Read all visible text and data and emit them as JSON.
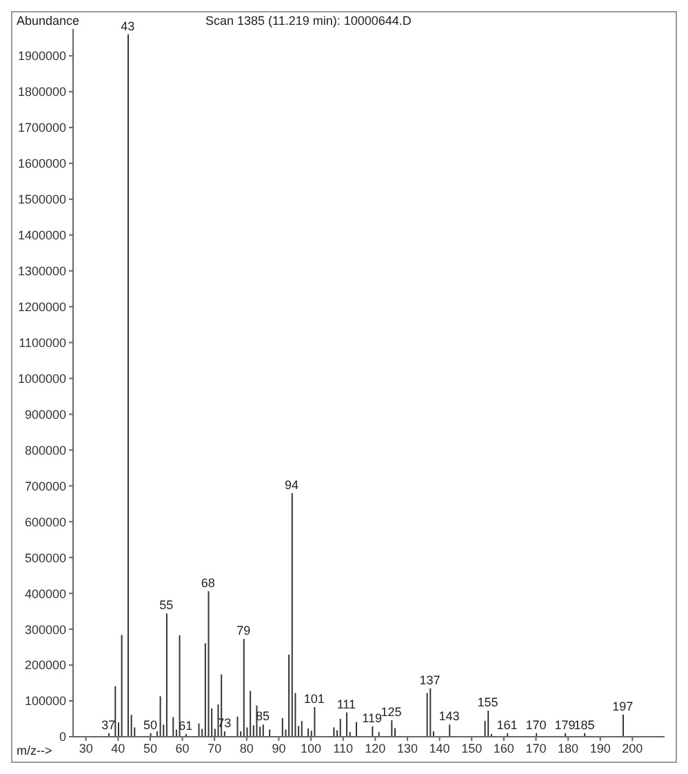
{
  "chart_data": {
    "type": "bar",
    "title": "Scan 1385 (11.219 min): 10000644.D",
    "xlabel": "m/z-->",
    "ylabel": "Abundance",
    "x": [
      37,
      39,
      40,
      41,
      43,
      44,
      45,
      50,
      52,
      53,
      54,
      55,
      57,
      58,
      59,
      61,
      65,
      66,
      67,
      68,
      69,
      70,
      71,
      72,
      73,
      77,
      78,
      79,
      80,
      81,
      82,
      83,
      84,
      85,
      87,
      91,
      92,
      93,
      94,
      95,
      96,
      97,
      99,
      100,
      101,
      107,
      108,
      109,
      111,
      112,
      114,
      119,
      121,
      125,
      126,
      136,
      137,
      138,
      143,
      154,
      155,
      156,
      161,
      170,
      179,
      185,
      197
    ],
    "values": [
      10000,
      141000,
      40000,
      284000,
      1960000,
      61000,
      26000,
      10000,
      15000,
      113000,
      34000,
      344000,
      55000,
      20000,
      283000,
      8000,
      37000,
      22000,
      261000,
      406000,
      79000,
      22000,
      90000,
      174000,
      15000,
      56000,
      15000,
      273000,
      26000,
      128000,
      32000,
      87000,
      28000,
      34000,
      20000,
      52000,
      20000,
      229000,
      680000,
      122000,
      30000,
      44000,
      23000,
      17000,
      83000,
      26000,
      18000,
      50000,
      68000,
      13000,
      41000,
      29000,
      13000,
      46000,
      24000,
      122000,
      135000,
      15000,
      34000,
      44000,
      73000,
      8000,
      10000,
      10000,
      10000,
      10000,
      62000
    ],
    "color": "#333333",
    "xlim": [
      26,
      210
    ],
    "xticks": [
      30,
      40,
      50,
      60,
      70,
      80,
      90,
      100,
      110,
      120,
      130,
      140,
      150,
      160,
      170,
      180,
      190,
      200
    ],
    "ylim": [
      0,
      1975000
    ],
    "yticks": [
      0,
      100000,
      200000,
      300000,
      400000,
      500000,
      600000,
      700000,
      800000,
      900000,
      1000000,
      1100000,
      1200000,
      1300000,
      1400000,
      1500000,
      1600000,
      1700000,
      1800000,
      1900000
    ],
    "grid": false,
    "annotations": [
      {
        "text": "37",
        "x": 37,
        "y": 10000
      },
      {
        "text": "43",
        "x": 43,
        "y": 1960000
      },
      {
        "text": "50",
        "x": 50,
        "y": 10000
      },
      {
        "text": "55",
        "x": 55,
        "y": 344000
      },
      {
        "text": "61",
        "x": 61,
        "y": 8000
      },
      {
        "text": "68",
        "x": 68,
        "y": 406000
      },
      {
        "text": "73",
        "x": 73,
        "y": 15000
      },
      {
        "text": "79",
        "x": 79,
        "y": 273000
      },
      {
        "text": "85",
        "x": 85,
        "y": 34000
      },
      {
        "text": "94",
        "x": 94,
        "y": 680000
      },
      {
        "text": "101",
        "x": 101,
        "y": 83000
      },
      {
        "text": "111",
        "x": 111,
        "y": 68000
      },
      {
        "text": "119",
        "x": 119,
        "y": 29000
      },
      {
        "text": "125",
        "x": 125,
        "y": 46000
      },
      {
        "text": "137",
        "x": 137,
        "y": 135000
      },
      {
        "text": "143",
        "x": 143,
        "y": 34000
      },
      {
        "text": "155",
        "x": 155,
        "y": 73000
      },
      {
        "text": "161",
        "x": 161,
        "y": 10000
      },
      {
        "text": "170",
        "x": 170,
        "y": 10000
      },
      {
        "text": "179",
        "x": 179,
        "y": 10000
      },
      {
        "text": "185",
        "x": 185,
        "y": 10000
      },
      {
        "text": "197",
        "x": 197,
        "y": 62000
      }
    ]
  }
}
